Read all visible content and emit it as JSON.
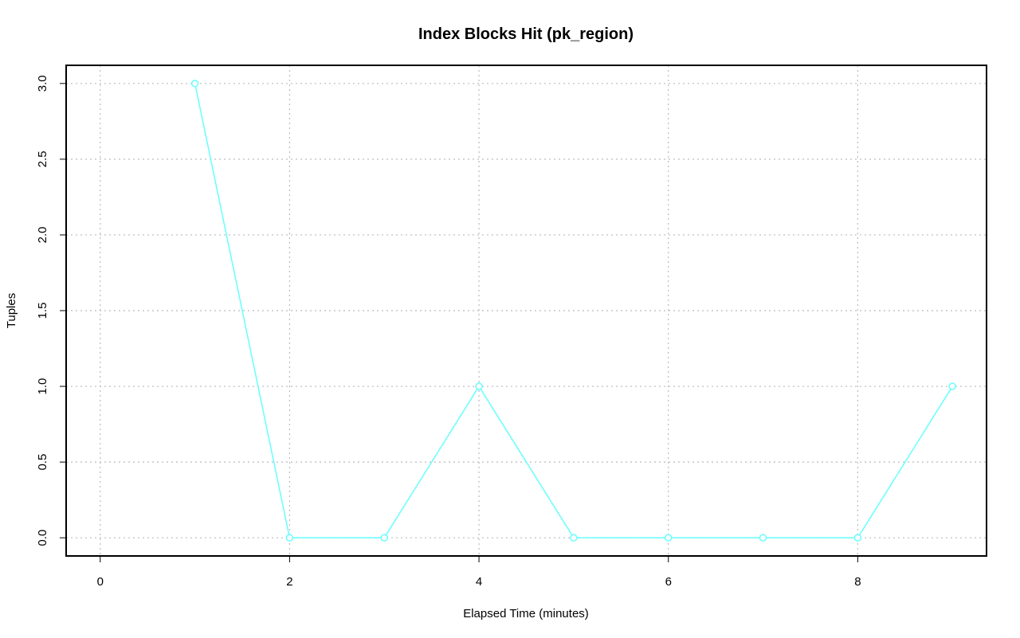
{
  "chart_data": {
    "type": "line",
    "title": "Index Blocks Hit (pk_region)",
    "x_label": "Elapsed Time (minutes)",
    "y_label": "Tuples",
    "x": [
      1,
      2,
      3,
      4,
      5,
      6,
      7,
      8,
      9
    ],
    "series": [
      {
        "name": "pk_region",
        "color": "#66ffff",
        "values": [
          3,
          0,
          0,
          1,
          0,
          0,
          0,
          0,
          1
        ]
      }
    ],
    "xlim": [
      -0.36,
      9.36
    ],
    "xticks": [
      0,
      2,
      4,
      6,
      8
    ],
    "ylim": [
      -0.12,
      3.12
    ],
    "yticks": [
      {
        "value": 0,
        "label": "0.0"
      },
      {
        "value": 0.5,
        "label": "0.5"
      },
      {
        "value": 1,
        "label": "1.0"
      },
      {
        "value": 1.5,
        "label": "1.5"
      },
      {
        "value": 2,
        "label": "2.0"
      },
      {
        "value": 2.5,
        "label": "2.5"
      },
      {
        "value": 3,
        "label": "3.0"
      }
    ],
    "grid": true,
    "markers": true
  }
}
